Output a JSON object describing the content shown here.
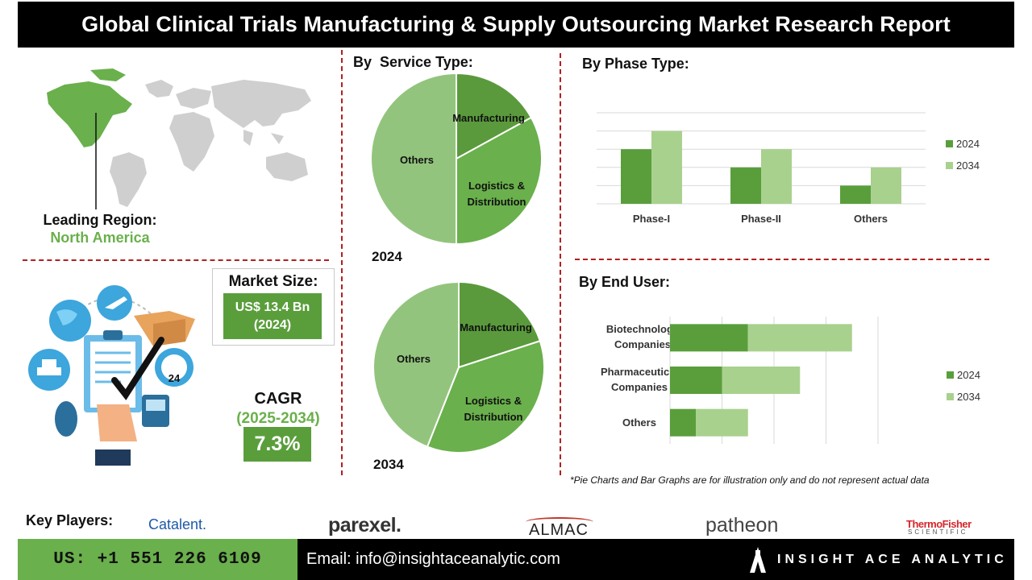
{
  "header": {
    "title": "Global Clinical Trials Manufacturing & Supply Outsourcing Market Research Report"
  },
  "region": {
    "label": "Leading Region:",
    "value": "North America"
  },
  "market_size": {
    "title": "Market Size:",
    "value_line1": "US$ 13.4 Bn",
    "value_line2": "(2024)"
  },
  "cagr": {
    "title": "CAGR",
    "period": "(2025-2034)",
    "value": "7.3%"
  },
  "service": {
    "title": "By  Service Type:",
    "year_2024": "2024",
    "year_2034": "2034",
    "labels": {
      "manufacturing": "Manufacturing",
      "logistics_1": "Logistics &",
      "logistics_2": "Distribution",
      "others": "Others"
    }
  },
  "phase": {
    "title": "By Phase Type:"
  },
  "end_user": {
    "title": "By End User:",
    "cat_bio_1": "Biotechnology",
    "cat_bio_2": "Companies",
    "cat_pharma_1": "Pharmaceutical",
    "cat_pharma_2": "Companies",
    "cat_others": "Others"
  },
  "disclaimer": "*Pie Charts and Bar Graphs are for illustration only and do not represent actual data",
  "key_players": {
    "label": "Key Players:",
    "logos": [
      "Catalent.",
      "parexel.",
      "ALMAC",
      "patheon",
      "ThermoFisher",
      "SCIENTIFIC"
    ]
  },
  "footer": {
    "phone": "US: +1 551 226 6109",
    "email": "Email: info@insightaceanalytic.com",
    "brand": "INSIGHT ACE ANALYTIC"
  },
  "colors": {
    "dark_green": "#5a9e3c",
    "mid_green": "#6ab04c",
    "light_green": "#a9d18e",
    "pie_others": "#93c47d",
    "dashes": "#b02020"
  },
  "icons": [
    "world-map",
    "logistics-illustration",
    "brand-logo-mark"
  ],
  "chart_data": [
    {
      "type": "pie",
      "title": "By  Service Type:",
      "year": "2024",
      "categories": [
        "Manufacturing",
        "Logistics & Distribution",
        "Others"
      ],
      "values": [
        17,
        33,
        50
      ]
    },
    {
      "type": "pie",
      "title": "By  Service Type:",
      "year": "2034",
      "categories": [
        "Manufacturing",
        "Logistics & Distribution",
        "Others"
      ],
      "values": [
        20,
        36,
        44
      ]
    },
    {
      "type": "bar",
      "title": "By Phase Type:",
      "categories": [
        "Phase-I",
        "Phase-II",
        "Others"
      ],
      "series": [
        {
          "name": "2024",
          "values": [
            3,
            2,
            1
          ]
        },
        {
          "name": "2034",
          "values": [
            4,
            3,
            2
          ]
        }
      ],
      "ylim": [
        0,
        5
      ],
      "grid": true,
      "legend": "right"
    },
    {
      "type": "bar",
      "orientation": "horizontal",
      "stacked": true,
      "title": "By End User:",
      "categories": [
        "Biotechnology Companies",
        "Pharmaceutical Companies",
        "Others"
      ],
      "series": [
        {
          "name": "2024",
          "values": [
            3,
            2,
            1
          ]
        },
        {
          "name": "2034",
          "values": [
            4,
            3,
            2
          ]
        }
      ],
      "xlim": [
        0,
        8
      ],
      "grid": true,
      "legend": "right"
    }
  ]
}
